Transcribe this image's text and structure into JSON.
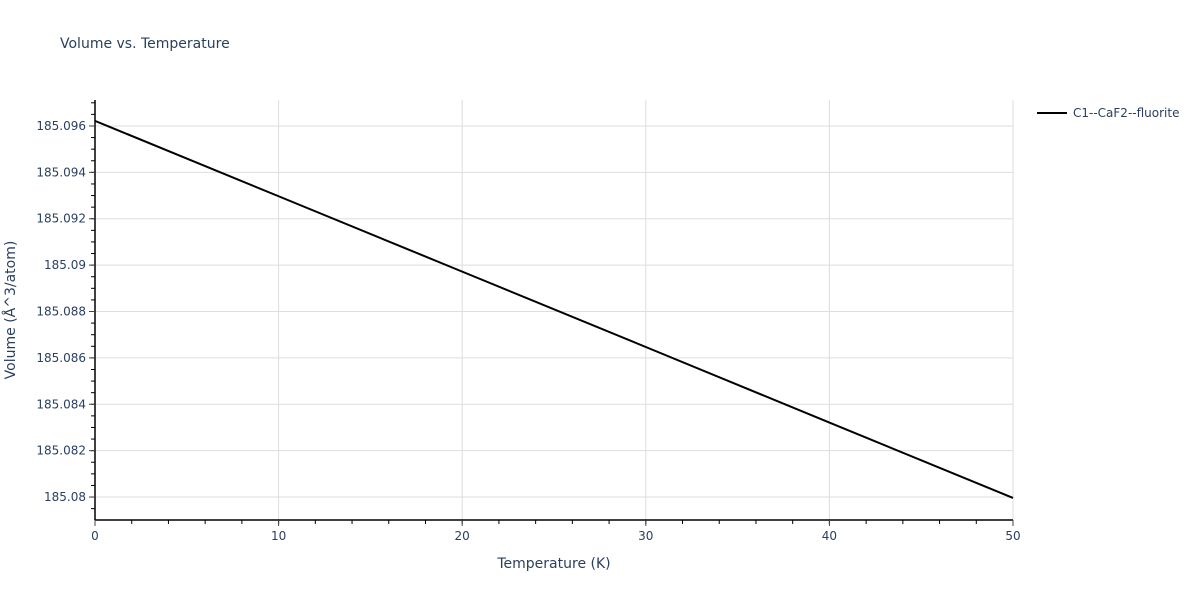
{
  "chart_data": {
    "type": "line",
    "title": "Volume vs. Temperature",
    "xlabel": "Temperature (K)",
    "ylabel": "Volume (Å^3/atom)",
    "xlim": [
      0,
      50
    ],
    "ylim": [
      185.07901,
      185.09712
    ],
    "x_ticks": [
      0,
      10,
      20,
      30,
      40,
      50
    ],
    "y_ticks": [
      185.08,
      185.082,
      185.084,
      185.086,
      185.088,
      185.09,
      185.092,
      185.094,
      185.096
    ],
    "y_tick_labels": [
      "185.08",
      "185.082",
      "185.084",
      "185.086",
      "185.088",
      "185.09",
      "185.092",
      "185.094",
      "185.096"
    ],
    "grid": true,
    "legend_position": "right-top",
    "series": [
      {
        "name": "C1--CaF2--fluorite",
        "color": "#000000",
        "x": [
          0,
          10,
          20,
          30,
          40,
          50
        ],
        "values": [
          185.09622,
          185.09297,
          185.08972,
          185.08647,
          185.08321,
          185.07996
        ]
      }
    ]
  }
}
